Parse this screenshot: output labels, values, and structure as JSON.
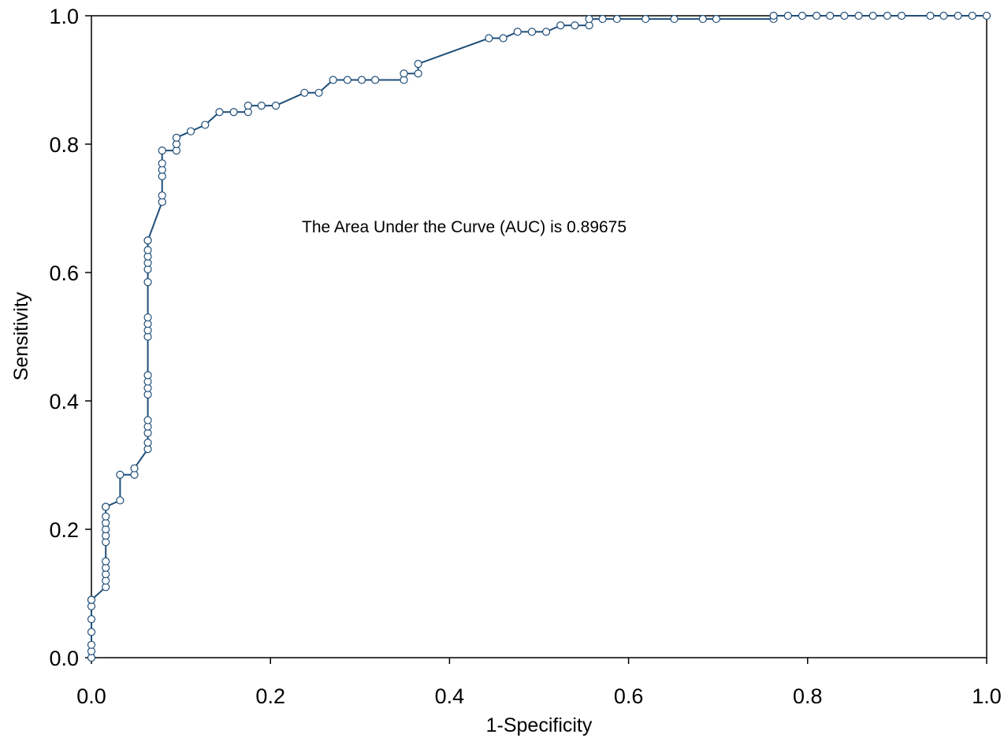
{
  "chart_data": {
    "type": "line",
    "title": "",
    "xlabel": "1-Specificity",
    "ylabel": "Sensitivity",
    "xlim": [
      0,
      1
    ],
    "ylim": [
      0,
      1
    ],
    "x_ticks": [
      "0.0",
      "0.2",
      "0.4",
      "0.6",
      "0.8",
      "1.0"
    ],
    "y_ticks": [
      "0.0",
      "0.2",
      "0.4",
      "0.6",
      "0.8",
      "1.0"
    ],
    "grid": false,
    "legend": "none",
    "annotation": "The Area Under the Curve (AUC) is 0.89675",
    "line_color": "#1f4e79",
    "marker": "open-circle",
    "series": [
      {
        "x": [
          0.0,
          0.0,
          0.0,
          0.0,
          0.0,
          0.0,
          0.0,
          0.0,
          0.016,
          0.016,
          0.016,
          0.016,
          0.016,
          0.016,
          0.016,
          0.016,
          0.016,
          0.016,
          0.016,
          0.016,
          0.032,
          0.032,
          0.048,
          0.048,
          0.063,
          0.063,
          0.063,
          0.063,
          0.063,
          0.063,
          0.063,
          0.063,
          0.063,
          0.063,
          0.063,
          0.063,
          0.063,
          0.063,
          0.063,
          0.063,
          0.063,
          0.063,
          0.063,
          0.063,
          0.079,
          0.079,
          0.079,
          0.079,
          0.079,
          0.079,
          0.095,
          0.095,
          0.095,
          0.111,
          0.127,
          0.143,
          0.159,
          0.175,
          0.175,
          0.19,
          0.206,
          0.238,
          0.254,
          0.27,
          0.286,
          0.302,
          0.317,
          0.349,
          0.349,
          0.365,
          0.365,
          0.444,
          0.46,
          0.476,
          0.492,
          0.508,
          0.524,
          0.54,
          0.556,
          0.556,
          0.571,
          0.587,
          0.619,
          0.651,
          0.683,
          0.698,
          0.762,
          0.762,
          0.778,
          0.794,
          0.81,
          0.825,
          0.841,
          0.857,
          0.873,
          0.889,
          0.905,
          0.937,
          0.952,
          0.968,
          0.984,
          1.0
        ],
        "y": [
          0.0,
          0.01,
          0.02,
          0.04,
          0.06,
          0.08,
          0.09,
          0.09,
          0.11,
          0.12,
          0.13,
          0.14,
          0.15,
          0.18,
          0.19,
          0.2,
          0.21,
          0.22,
          0.235,
          0.235,
          0.245,
          0.285,
          0.285,
          0.295,
          0.325,
          0.335,
          0.35,
          0.36,
          0.37,
          0.41,
          0.42,
          0.43,
          0.44,
          0.5,
          0.51,
          0.52,
          0.53,
          0.585,
          0.605,
          0.615,
          0.625,
          0.635,
          0.65,
          0.65,
          0.71,
          0.72,
          0.75,
          0.76,
          0.77,
          0.79,
          0.79,
          0.8,
          0.81,
          0.82,
          0.83,
          0.85,
          0.85,
          0.85,
          0.86,
          0.86,
          0.86,
          0.88,
          0.88,
          0.9,
          0.9,
          0.9,
          0.9,
          0.9,
          0.91,
          0.91,
          0.925,
          0.965,
          0.965,
          0.975,
          0.975,
          0.975,
          0.985,
          0.985,
          0.985,
          0.995,
          0.995,
          0.995,
          0.995,
          0.995,
          0.995,
          0.995,
          0.995,
          1.0,
          1.0,
          1.0,
          1.0,
          1.0,
          1.0,
          1.0,
          1.0,
          1.0,
          1.0,
          1.0,
          1.0,
          1.0,
          1.0,
          1.0
        ]
      }
    ]
  }
}
